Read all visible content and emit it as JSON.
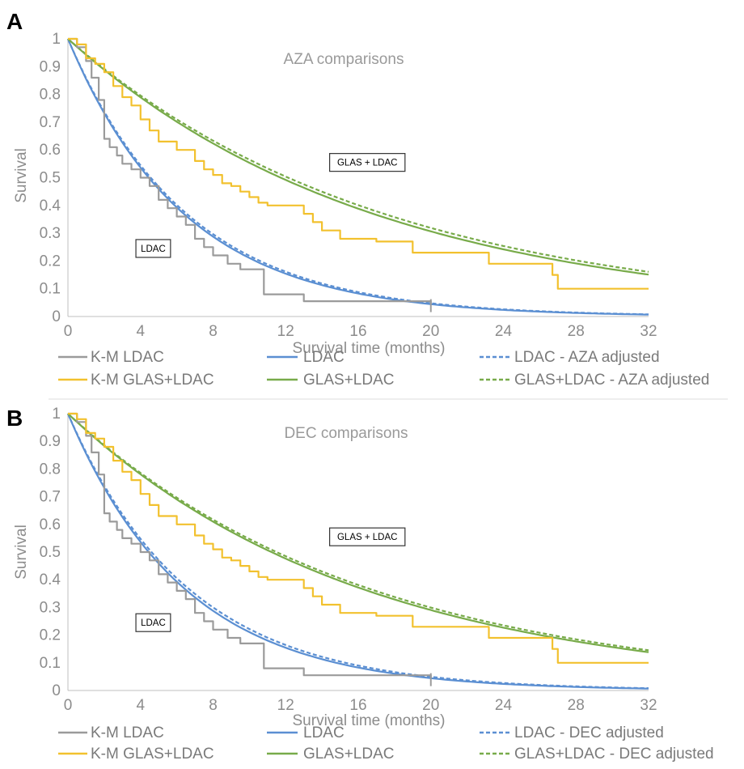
{
  "panels": [
    {
      "letter": "A",
      "chart_data": {
        "type": "line",
        "title": "AZA comparisons",
        "xlabel": "Survival time (months)",
        "ylabel": "Survival",
        "xlim": [
          0,
          32
        ],
        "ylim": [
          0,
          1
        ],
        "x_ticks": [
          "0",
          "4",
          "8",
          "12",
          "16",
          "20",
          "24",
          "28",
          "32"
        ],
        "y_ticks": [
          "0",
          "0.1",
          "0.2",
          "0.3",
          "0.4",
          "0.5",
          "0.6",
          "0.7",
          "0.8",
          "0.9",
          "1"
        ],
        "grid": false,
        "annotations": [
          {
            "text": "GLAS + LDAC",
            "x": 16.5,
            "y": 0.555
          },
          {
            "text": "LDAC",
            "x": 4.7,
            "y": 0.245
          }
        ],
        "series": [
          {
            "name": "K-M LDAC",
            "kind": "step",
            "style": "solid",
            "color": "#9b9b9b",
            "x": [
              0,
              0.5,
              1.0,
              1.3,
              1.7,
              2.0,
              2.3,
              2.7,
              3.0,
              3.5,
              4.0,
              4.5,
              5.0,
              5.5,
              6.0,
              6.5,
              7.0,
              7.5,
              8.0,
              8.8,
              9.5,
              10.8,
              13.0,
              20.0
            ],
            "y": [
              1,
              0.97,
              0.92,
              0.86,
              0.78,
              0.64,
              0.61,
              0.58,
              0.55,
              0.53,
              0.5,
              0.47,
              0.42,
              0.39,
              0.36,
              0.33,
              0.28,
              0.25,
              0.22,
              0.19,
              0.17,
              0.08,
              0.055,
              0.045
            ]
          },
          {
            "name": "LDAC",
            "kind": "curve",
            "style": "solid",
            "color": "#5b8fd2",
            "rate": 0.1557,
            "x": [
              0,
              2,
              4,
              6,
              8,
              10,
              12,
              16,
              20,
              24,
              28,
              32
            ],
            "y": [
              1,
              0.732,
              0.536,
              0.393,
              0.288,
              0.211,
              0.154,
              0.083,
              0.044,
              0.024,
              0.013,
              0.007
            ]
          },
          {
            "name": "LDAC - AZA adjusted",
            "kind": "curve",
            "style": "dashed",
            "color": "#5b8fd2",
            "rate": 0.152,
            "x": [
              0,
              2,
              4,
              6,
              8,
              10,
              12,
              16,
              20,
              24,
              28,
              32
            ],
            "y": [
              1,
              0.738,
              0.544,
              0.402,
              0.296,
              0.219,
              0.161,
              0.088,
              0.048,
              0.026,
              0.014,
              0.008
            ]
          },
          {
            "name": "K-M GLAS+LDAC",
            "kind": "step",
            "style": "solid",
            "color": "#f2c12e",
            "x": [
              0,
              0.5,
              1.0,
              1.5,
              2.0,
              2.5,
              3.0,
              3.5,
              4.0,
              4.5,
              5.0,
              6.0,
              6.5,
              7.0,
              7.5,
              8.0,
              8.5,
              9.0,
              9.5,
              10.0,
              10.5,
              11.0,
              13.0,
              13.5,
              14.0,
              15.0,
              17.0,
              19.0,
              23.2,
              26.7,
              27.0,
              32.0
            ],
            "y": [
              1,
              0.98,
              0.93,
              0.91,
              0.88,
              0.83,
              0.79,
              0.76,
              0.71,
              0.67,
              0.63,
              0.6,
              0.6,
              0.56,
              0.53,
              0.51,
              0.48,
              0.47,
              0.45,
              0.43,
              0.41,
              0.4,
              0.37,
              0.34,
              0.31,
              0.28,
              0.27,
              0.23,
              0.19,
              0.15,
              0.1,
              0.1
            ]
          },
          {
            "name": "GLAS+LDAC",
            "kind": "curve",
            "style": "solid",
            "color": "#78ab4a",
            "rate": 0.0591,
            "x": [
              0,
              4,
              8,
              12,
              16,
              20,
              24,
              28,
              32
            ],
            "y": [
              1,
              0.789,
              0.623,
              0.492,
              0.388,
              0.307,
              0.242,
              0.191,
              0.151
            ]
          },
          {
            "name": "GLAS+LDAC - AZA adjusted",
            "kind": "curve",
            "style": "dashed",
            "color": "#78ab4a",
            "rate": 0.0571,
            "x": [
              0,
              4,
              8,
              12,
              16,
              20,
              24,
              28,
              32
            ],
            "y": [
              1,
              0.796,
              0.633,
              0.504,
              0.401,
              0.319,
              0.254,
              0.202,
              0.161
            ]
          }
        ]
      },
      "legend": [
        [
          "K-M LDAC",
          "LDAC",
          "LDAC - AZA adjusted"
        ],
        [
          "K-M GLAS+LDAC",
          "GLAS+LDAC",
          "GLAS+LDAC - AZA adjusted"
        ]
      ]
    },
    {
      "letter": "B",
      "chart_data": {
        "type": "line",
        "title": "DEC comparisons",
        "xlabel": "Survival time (months)",
        "ylabel": "Survival",
        "xlim": [
          0,
          32
        ],
        "ylim": [
          0,
          1
        ],
        "x_ticks": [
          "0",
          "4",
          "8",
          "12",
          "16",
          "20",
          "24",
          "28",
          "32"
        ],
        "y_ticks": [
          "0",
          "0.1",
          "0.2",
          "0.3",
          "0.4",
          "0.5",
          "0.6",
          "0.7",
          "0.8",
          "0.9",
          "1"
        ],
        "grid": false,
        "annotations": [
          {
            "text": "GLAS + LDAC",
            "x": 16.5,
            "y": 0.555
          },
          {
            "text": "LDAC",
            "x": 4.7,
            "y": 0.245
          }
        ],
        "series": [
          {
            "name": "K-M LDAC",
            "kind": "step",
            "style": "solid",
            "color": "#9b9b9b",
            "x": [
              0,
              0.5,
              1.0,
              1.3,
              1.7,
              2.0,
              2.3,
              2.7,
              3.0,
              3.5,
              4.0,
              4.5,
              5.0,
              5.5,
              6.0,
              6.5,
              7.0,
              7.5,
              8.0,
              8.8,
              9.5,
              10.8,
              13.0,
              20.0
            ],
            "y": [
              1,
              0.97,
              0.92,
              0.86,
              0.78,
              0.64,
              0.61,
              0.58,
              0.55,
              0.53,
              0.5,
              0.47,
              0.42,
              0.39,
              0.36,
              0.33,
              0.28,
              0.25,
              0.22,
              0.19,
              0.17,
              0.08,
              0.055,
              0.045
            ]
          },
          {
            "name": "LDAC",
            "kind": "curve",
            "style": "solid",
            "color": "#5b8fd2",
            "rate": 0.1557,
            "x": [
              0,
              2,
              4,
              6,
              8,
              10,
              12,
              16,
              20,
              24,
              28,
              32
            ],
            "y": [
              1,
              0.732,
              0.536,
              0.393,
              0.288,
              0.211,
              0.154,
              0.083,
              0.044,
              0.024,
              0.013,
              0.007
            ]
          },
          {
            "name": "LDAC - DEC adjusted",
            "kind": "curve",
            "style": "dashed",
            "color": "#5b8fd2",
            "rate": 0.1505,
            "x": [
              0,
              2,
              4,
              6,
              8,
              10,
              12,
              16,
              20,
              24,
              28,
              32
            ],
            "y": [
              1,
              0.74,
              0.548,
              0.405,
              0.3,
              0.222,
              0.164,
              0.09,
              0.049,
              0.027,
              0.015,
              0.008
            ]
          },
          {
            "name": "K-M GLAS+LDAC",
            "kind": "step",
            "style": "solid",
            "color": "#f2c12e",
            "x": [
              0,
              0.5,
              1.0,
              1.5,
              2.0,
              2.5,
              3.0,
              3.5,
              4.0,
              4.5,
              5.0,
              6.0,
              6.5,
              7.0,
              7.5,
              8.0,
              8.5,
              9.0,
              9.5,
              10.0,
              10.5,
              11.0,
              13.0,
              13.5,
              14.0,
              15.0,
              17.0,
              19.0,
              23.2,
              26.7,
              27.0,
              32.0
            ],
            "y": [
              1,
              0.98,
              0.93,
              0.91,
              0.88,
              0.83,
              0.79,
              0.76,
              0.71,
              0.67,
              0.63,
              0.6,
              0.6,
              0.56,
              0.53,
              0.51,
              0.48,
              0.47,
              0.45,
              0.43,
              0.41,
              0.4,
              0.37,
              0.34,
              0.31,
              0.28,
              0.27,
              0.23,
              0.19,
              0.15,
              0.1,
              0.1
            ]
          },
          {
            "name": "GLAS+LDAC",
            "kind": "curve",
            "style": "solid",
            "color": "#78ab4a",
            "rate": 0.0618,
            "x": [
              0,
              4,
              8,
              12,
              16,
              20,
              24,
              28,
              32
            ],
            "y": [
              1,
              0.781,
              0.61,
              0.476,
              0.372,
              0.291,
              0.227,
              0.177,
              0.138
            ]
          },
          {
            "name": "GLAS+LDAC - DEC adjusted",
            "kind": "curve",
            "style": "dashed",
            "color": "#78ab4a",
            "rate": 0.0603,
            "x": [
              0,
              4,
              8,
              12,
              16,
              20,
              24,
              28,
              32
            ],
            "y": [
              1,
              0.786,
              0.617,
              0.485,
              0.381,
              0.299,
              0.235,
              0.185,
              0.145
            ]
          }
        ]
      },
      "legend": [
        [
          "K-M LDAC",
          "LDAC",
          "LDAC - DEC adjusted"
        ],
        [
          "K-M GLAS+LDAC",
          "GLAS+LDAC",
          "GLAS+LDAC - DEC adjusted"
        ]
      ]
    }
  ]
}
